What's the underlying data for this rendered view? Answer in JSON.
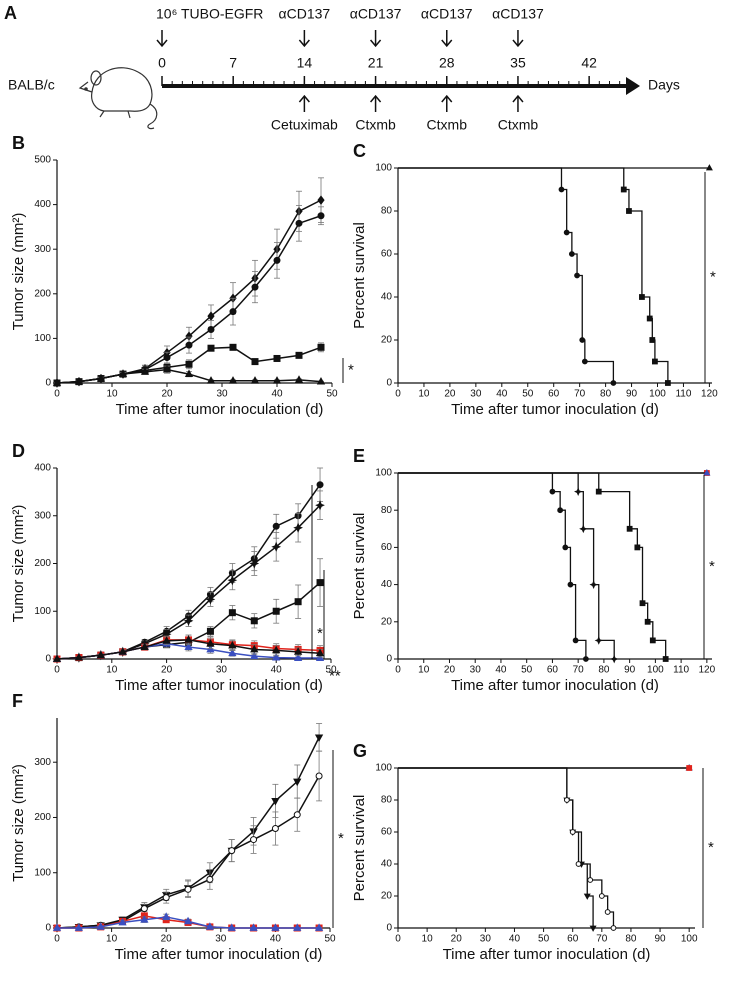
{
  "timeline": {
    "panel": "A",
    "strain": "BALB/c",
    "unit": "Days",
    "xlim": [
      0,
      47
    ],
    "ticks": [
      0,
      7,
      14,
      21,
      28,
      35,
      42
    ],
    "above": [
      {
        "day": 0,
        "label": "10⁶ TUBO-EGFR"
      },
      {
        "day": 14,
        "label": "αCD137"
      },
      {
        "day": 21,
        "label": "αCD137"
      },
      {
        "day": 28,
        "label": "αCD137"
      },
      {
        "day": 35,
        "label": "αCD137"
      }
    ],
    "below": [
      {
        "day": 14,
        "label": "Cetuximab"
      },
      {
        "day": 21,
        "label": "Ctxmb"
      },
      {
        "day": 28,
        "label": "Ctxmb"
      },
      {
        "day": 35,
        "label": "Ctxmb"
      }
    ]
  },
  "chart_data": [
    {
      "type": "line",
      "panel": "B",
      "xlabel": "Time after tumor inoculation (d)",
      "ylabel": "Tumor size (mm²)",
      "xlim": [
        0,
        50
      ],
      "ylim": [
        0,
        500
      ],
      "xticks": [
        0,
        10,
        20,
        30,
        40,
        50
      ],
      "yticks": [
        0,
        100,
        200,
        300,
        400,
        500
      ],
      "x": [
        0,
        4,
        8,
        12,
        16,
        20,
        24,
        28,
        32,
        36,
        40,
        44,
        48
      ],
      "series": [
        {
          "color": "#111111",
          "marker": "diamond",
          "values": [
            0,
            3,
            10,
            20,
            32,
            68,
            105,
            150,
            190,
            235,
            300,
            385,
            410
          ],
          "errors": [
            0,
            1,
            3,
            5,
            8,
            15,
            20,
            25,
            35,
            40,
            45,
            45,
            50
          ]
        },
        {
          "color": "#111111",
          "marker": "circle",
          "values": [
            0,
            3,
            10,
            20,
            30,
            57,
            85,
            120,
            160,
            215,
            275,
            358,
            375
          ],
          "errors": [
            0,
            1,
            3,
            5,
            8,
            12,
            18,
            20,
            30,
            35,
            40,
            40,
            20
          ]
        },
        {
          "color": "#111111",
          "marker": "square",
          "values": [
            0,
            3,
            10,
            20,
            28,
            35,
            42,
            78,
            80,
            48,
            55,
            62,
            80
          ],
          "errors": [
            0,
            1,
            3,
            4,
            6,
            8,
            10,
            5,
            5,
            5,
            6,
            6,
            10
          ]
        },
        {
          "color": "#111111",
          "marker": "triangle",
          "values": [
            0,
            3,
            10,
            20,
            25,
            30,
            20,
            5,
            5,
            5,
            5,
            7,
            3
          ],
          "errors": [
            0,
            1,
            3,
            4,
            6,
            8,
            6,
            2,
            2,
            2,
            2,
            2,
            1
          ]
        }
      ],
      "annotations": [
        "*"
      ]
    },
    {
      "type": "step",
      "panel": "C",
      "xlabel": "Time after tumor inoculation (d)",
      "ylabel": "Percent survival",
      "xlim": [
        0,
        121
      ],
      "ylim": [
        0,
        100
      ],
      "xticks": [
        0,
        10,
        20,
        30,
        40,
        50,
        60,
        70,
        80,
        90,
        100,
        110,
        120
      ],
      "yticks": [
        0,
        20,
        40,
        60,
        80,
        100
      ],
      "series": [
        {
          "color": "#111111",
          "marker": "triangle",
          "x": [
            0,
            120
          ],
          "values": [
            100,
            100
          ]
        },
        {
          "color": "#111111",
          "marker": "circle",
          "x": [
            0,
            63,
            65,
            67,
            69,
            71,
            72,
            83
          ],
          "values": [
            100,
            90,
            70,
            60,
            50,
            20,
            10,
            0
          ]
        },
        {
          "color": "#111111",
          "marker": "square",
          "x": [
            0,
            87,
            89,
            94,
            97,
            98,
            99,
            104
          ],
          "values": [
            100,
            90,
            80,
            40,
            30,
            20,
            10,
            0
          ]
        }
      ],
      "annotations": [
        "*"
      ]
    },
    {
      "type": "line",
      "panel": "D",
      "xlabel": "Time after tumor inoculation (d)",
      "ylabel": "Tumor size (mm²)",
      "xlim": [
        0,
        50
      ],
      "ylim": [
        0,
        400
      ],
      "xticks": [
        0,
        10,
        20,
        30,
        40,
        50
      ],
      "yticks": [
        0,
        100,
        200,
        300,
        400
      ],
      "x": [
        0,
        4,
        8,
        12,
        16,
        20,
        24,
        28,
        32,
        36,
        40,
        44,
        48
      ],
      "series": [
        {
          "color": "#111111",
          "marker": "circle",
          "values": [
            0,
            3,
            8,
            15,
            35,
            58,
            90,
            135,
            180,
            210,
            278,
            300,
            365
          ],
          "errors": [
            0,
            1,
            2,
            4,
            6,
            10,
            12,
            15,
            20,
            25,
            25,
            25,
            35
          ]
        },
        {
          "color": "#111111",
          "marker": "star",
          "values": [
            0,
            3,
            8,
            15,
            32,
            52,
            80,
            125,
            165,
            200,
            235,
            275,
            322
          ],
          "errors": [
            0,
            1,
            2,
            4,
            6,
            10,
            12,
            15,
            20,
            25,
            30,
            30,
            30
          ]
        },
        {
          "color": "#111111",
          "marker": "square",
          "values": [
            0,
            3,
            8,
            15,
            25,
            30,
            35,
            58,
            97,
            80,
            100,
            120,
            160
          ],
          "errors": [
            0,
            1,
            2,
            4,
            5,
            6,
            8,
            10,
            15,
            15,
            25,
            35,
            50
          ]
        },
        {
          "color": "#e0241c",
          "marker": "square",
          "values": [
            0,
            3,
            8,
            15,
            25,
            40,
            40,
            36,
            30,
            28,
            22,
            20,
            18
          ],
          "errors": [
            0,
            1,
            2,
            4,
            5,
            8,
            10,
            10,
            10,
            10,
            10,
            10,
            10
          ]
        },
        {
          "color": "#3a4fc0",
          "marker": "triangle",
          "values": [
            0,
            3,
            8,
            15,
            25,
            32,
            25,
            20,
            12,
            6,
            3,
            2,
            2
          ],
          "errors": [
            0,
            1,
            2,
            4,
            5,
            8,
            8,
            8,
            6,
            5,
            3,
            2,
            2
          ]
        },
        {
          "color": "#111111",
          "marker": "triangle",
          "values": [
            0,
            3,
            8,
            15,
            25,
            38,
            40,
            32,
            28,
            20,
            18,
            15,
            12
          ],
          "errors": [
            0,
            1,
            2,
            4,
            5,
            8,
            10,
            10,
            10,
            10,
            10,
            8,
            8
          ]
        }
      ],
      "annotations": [
        "*",
        "**"
      ]
    },
    {
      "type": "step",
      "panel": "E",
      "xlabel": "Time after tumor inoculation (d)",
      "ylabel": "Percent survival",
      "xlim": [
        0,
        122
      ],
      "ylim": [
        0,
        100
      ],
      "xticks": [
        0,
        10,
        20,
        30,
        40,
        50,
        60,
        70,
        80,
        90,
        100,
        110,
        120
      ],
      "yticks": [
        0,
        20,
        40,
        60,
        80,
        100
      ],
      "series": [
        {
          "color": "#111111",
          "marker": "triangle",
          "x": [
            0,
            120
          ],
          "values": [
            100,
            100
          ]
        },
        {
          "color": "#e0241c",
          "marker": "square",
          "x": [
            0,
            120
          ],
          "values": [
            100,
            100
          ]
        },
        {
          "color": "#3a4fc0",
          "marker": "triangle",
          "x": [
            0,
            120
          ],
          "values": [
            100,
            100
          ]
        },
        {
          "color": "#111111",
          "marker": "circle",
          "x": [
            0,
            60,
            63,
            65,
            67,
            69,
            73
          ],
          "values": [
            100,
            90,
            80,
            60,
            40,
            10,
            0
          ]
        },
        {
          "color": "#111111",
          "marker": "star",
          "x": [
            0,
            70,
            72,
            76,
            78,
            84
          ],
          "values": [
            100,
            90,
            70,
            40,
            10,
            0
          ]
        },
        {
          "color": "#111111",
          "marker": "square",
          "x": [
            0,
            78,
            90,
            93,
            95,
            97,
            99,
            104
          ],
          "values": [
            100,
            90,
            70,
            60,
            30,
            20,
            10,
            0
          ]
        }
      ],
      "annotations": [
        "*"
      ]
    },
    {
      "type": "line",
      "panel": "F",
      "xlabel": "Time after tumor inoculation (d)",
      "ylabel": "Tumor size (mm²)",
      "xlim": [
        0,
        50
      ],
      "ylim": [
        0,
        380
      ],
      "xticks": [
        0,
        10,
        20,
        30,
        40,
        50
      ],
      "yticks": [
        0,
        100,
        200,
        300
      ],
      "x": [
        0,
        4,
        8,
        12,
        16,
        20,
        24,
        28,
        32,
        36,
        40,
        44,
        48
      ],
      "series": [
        {
          "color": "#111111",
          "marker": "triangle-down",
          "values": [
            0,
            2,
            5,
            15,
            38,
            60,
            72,
            100,
            140,
            175,
            230,
            265,
            345
          ],
          "errors": [
            0,
            1,
            3,
            5,
            8,
            10,
            15,
            18,
            20,
            25,
            30,
            30,
            25
          ]
        },
        {
          "color": "#111111",
          "marker": "circle-open",
          "values": [
            0,
            2,
            5,
            12,
            35,
            55,
            70,
            88,
            140,
            160,
            180,
            205,
            275
          ],
          "errors": [
            0,
            1,
            3,
            5,
            8,
            10,
            15,
            18,
            20,
            25,
            30,
            30,
            45
          ]
        },
        {
          "color": "#e0241c",
          "marker": "square",
          "values": [
            0,
            0,
            2,
            12,
            22,
            15,
            10,
            2,
            0,
            0,
            0,
            0,
            0
          ],
          "errors": [
            0,
            1,
            2,
            4,
            5,
            5,
            4,
            2,
            1,
            1,
            1,
            1,
            1
          ]
        },
        {
          "color": "#3a4fc0",
          "marker": "triangle",
          "values": [
            0,
            0,
            2,
            10,
            15,
            20,
            12,
            2,
            0,
            0,
            0,
            0,
            0
          ],
          "errors": [
            0,
            1,
            2,
            4,
            5,
            5,
            4,
            2,
            1,
            1,
            1,
            1,
            1
          ]
        }
      ],
      "annotations": [
        "*"
      ]
    },
    {
      "type": "step",
      "panel": "G",
      "xlabel": "Time after tumor inoculation (d)",
      "ylabel": "Percent survival",
      "xlim": [
        0,
        102
      ],
      "ylim": [
        0,
        100
      ],
      "xticks": [
        0,
        10,
        20,
        30,
        40,
        50,
        60,
        70,
        80,
        90,
        100
      ],
      "yticks": [
        0,
        20,
        40,
        60,
        80,
        100
      ],
      "series": [
        {
          "color": "#111111",
          "marker": "triangle",
          "x": [
            0,
            100
          ],
          "values": [
            100,
            100
          ]
        },
        {
          "color": "#3a4fc0",
          "marker": "triangle",
          "x": [
            0,
            100
          ],
          "values": [
            100,
            100
          ]
        },
        {
          "color": "#e0241c",
          "marker": "square",
          "x": [
            0,
            100
          ],
          "values": [
            100,
            100
          ]
        },
        {
          "color": "#111111",
          "marker": "triangle-down",
          "x": [
            0,
            58,
            60,
            63,
            65,
            67
          ],
          "values": [
            100,
            80,
            60,
            40,
            20,
            0
          ]
        },
        {
          "color": "#111111",
          "marker": "circle-open",
          "x": [
            0,
            58,
            60,
            62,
            66,
            70,
            72,
            74
          ],
          "values": [
            100,
            80,
            60,
            40,
            30,
            20,
            10,
            0
          ]
        }
      ],
      "annotations": [
        "*"
      ]
    }
  ]
}
